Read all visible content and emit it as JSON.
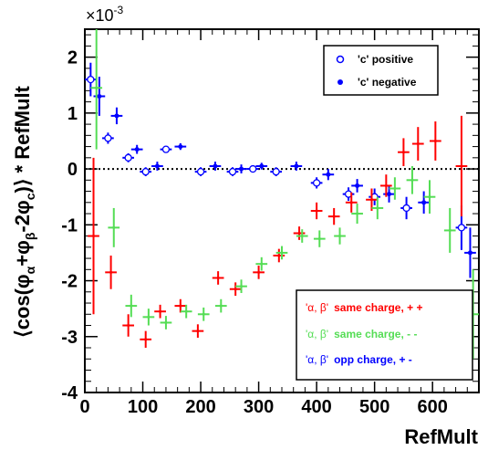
{
  "chart_data": {
    "type": "scatter",
    "xlabel": "RefMult",
    "ylabel_parts": {
      "pre": "⟨cos(φ",
      "sub1": "α",
      "mid1": "+φ",
      "sub2": "β",
      "mid2": "-2φ",
      "sub3": "c",
      "post": ")⟩ * RefMult"
    },
    "scale_label": "×10",
    "scale_exp": "-3",
    "xlim": [
      0,
      680
    ],
    "ylim": [
      -4,
      2.5
    ],
    "xticks": [
      0,
      100,
      200,
      300,
      400,
      500,
      600
    ],
    "yticks": [
      -4,
      -3,
      -2,
      -1,
      0,
      1,
      2
    ],
    "zero_line": true,
    "series": [
      {
        "name": "'c' positive",
        "legend_group": "top",
        "marker": "open-circle",
        "color": "#0000ff",
        "x": [
          10,
          40,
          75,
          105,
          140,
          200,
          255,
          290,
          330,
          400,
          455,
          500,
          555,
          650
        ],
        "y": [
          1.6,
          0.55,
          0.2,
          -0.05,
          0.35,
          -0.05,
          -0.05,
          0,
          -0.05,
          -0.25,
          -0.45,
          -0.5,
          -0.7,
          -1.05
        ],
        "xerr": 10,
        "yerr": [
          0.3,
          0.1,
          0.08,
          0.08,
          0.06,
          0.08,
          0.08,
          0.06,
          0.08,
          0.1,
          0.12,
          0.15,
          0.2,
          0.4
        ]
      },
      {
        "name": "'c' negative",
        "legend_group": "top",
        "marker": "filled-circle",
        "color": "#0000ff",
        "x": [
          25,
          55,
          90,
          125,
          165,
          225,
          270,
          305,
          365,
          420,
          470,
          525,
          585,
          665
        ],
        "y": [
          1.3,
          0.95,
          0.35,
          0.05,
          0.4,
          0.05,
          0,
          0.05,
          0.05,
          -0.1,
          -0.3,
          -0.45,
          -0.6,
          -1.5
        ],
        "xerr": 10,
        "yerr": [
          0.35,
          0.15,
          0.08,
          0.08,
          0.06,
          0.08,
          0.08,
          0.06,
          0.08,
          0.1,
          0.12,
          0.15,
          0.2,
          0.45
        ]
      },
      {
        "name": "'α, β' same charge, + +",
        "legend_group": "bottom",
        "prefix": "'α, β'",
        "label": "same charge, + +",
        "color": "#ff0000",
        "x": [
          15,
          45,
          75,
          105,
          130,
          165,
          195,
          230,
          260,
          300,
          335,
          370,
          400,
          430,
          460,
          495,
          520,
          550,
          575,
          605,
          650
        ],
        "y": [
          -1.2,
          -1.85,
          -2.8,
          -3.05,
          -2.55,
          -2.45,
          -2.9,
          -1.95,
          -2.15,
          -1.85,
          -1.55,
          -1.15,
          -0.75,
          -0.85,
          -0.6,
          -0.55,
          -0.3,
          0.3,
          0.45,
          0.5,
          0.05
        ],
        "xerr": 10,
        "yerr": [
          1.4,
          0.3,
          0.2,
          0.15,
          0.12,
          0.12,
          0.12,
          0.12,
          0.12,
          0.12,
          0.12,
          0.12,
          0.15,
          0.15,
          0.18,
          0.2,
          0.2,
          0.25,
          0.3,
          0.35,
          0.9
        ]
      },
      {
        "name": "'α, β' same charge, - -",
        "legend_group": "bottom",
        "prefix": "'α, β'",
        "label": "same charge, - -",
        "color": "#55dd55",
        "x": [
          20,
          50,
          80,
          110,
          140,
          175,
          205,
          235,
          270,
          305,
          340,
          375,
          405,
          440,
          470,
          505,
          535,
          565,
          595,
          630,
          670
        ],
        "y": [
          1.45,
          -1.05,
          -2.45,
          -2.65,
          -2.75,
          -2.55,
          -2.6,
          -2.45,
          -2.1,
          -1.7,
          -1.5,
          -1.2,
          -1.25,
          -1.2,
          -0.8,
          -0.7,
          -0.35,
          -0.2,
          -0.5,
          -1.1,
          -2.6
        ],
        "xerr": 10,
        "yerr": [
          1.1,
          0.35,
          0.2,
          0.15,
          0.12,
          0.12,
          0.12,
          0.12,
          0.12,
          0.12,
          0.12,
          0.12,
          0.15,
          0.15,
          0.18,
          0.2,
          0.2,
          0.25,
          0.3,
          0.4,
          0.8
        ]
      },
      {
        "name": "'α, β' opp charge, + -",
        "legend_group": "bottom",
        "prefix": "'α, β'",
        "label": "opp charge, + -",
        "color": "#0000ff",
        "visible_points": false
      }
    ],
    "legend_top": {
      "position": "top-right"
    },
    "legend_bottom": {
      "position": "bottom-right"
    }
  }
}
